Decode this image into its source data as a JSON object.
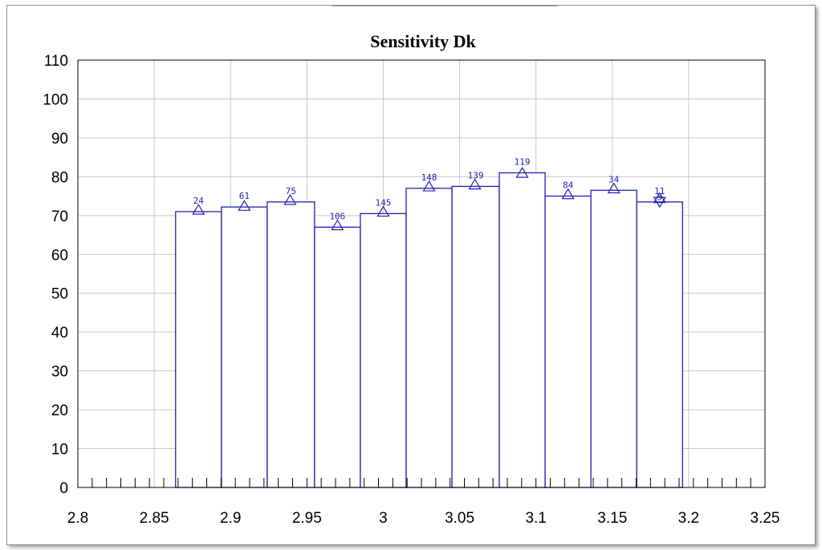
{
  "chart_data": {
    "type": "bar",
    "title": "Sensitivity Dk",
    "xlabel": "",
    "ylabel": "",
    "xlim": [
      2.8,
      3.25
    ],
    "ylim": [
      0,
      110
    ],
    "x_ticks": [
      "2.8",
      "2.85",
      "2.9",
      "2.95",
      "3",
      "3.05",
      "3.1",
      "3.15",
      "3.2",
      "3.25"
    ],
    "y_ticks": [
      "0",
      "10",
      "20",
      "30",
      "40",
      "50",
      "60",
      "70",
      "80",
      "90",
      "100",
      "110"
    ],
    "grid": true,
    "bin_width": 0.03,
    "bars": [
      {
        "x_start": 2.864,
        "x_end": 2.894,
        "value": 71.0,
        "label": "24"
      },
      {
        "x_start": 2.894,
        "x_end": 2.924,
        "value": 72.2,
        "label": "61"
      },
      {
        "x_start": 2.924,
        "x_end": 2.955,
        "value": 73.5,
        "label": "75"
      },
      {
        "x_start": 2.955,
        "x_end": 2.985,
        "value": 67.0,
        "label": "106"
      },
      {
        "x_start": 2.985,
        "x_end": 3.015,
        "value": 70.5,
        "label": "145"
      },
      {
        "x_start": 3.015,
        "x_end": 3.045,
        "value": 77.0,
        "label": "148"
      },
      {
        "x_start": 3.045,
        "x_end": 3.076,
        "value": 77.5,
        "label": "139"
      },
      {
        "x_start": 3.076,
        "x_end": 3.106,
        "value": 81.0,
        "label": "119"
      },
      {
        "x_start": 3.106,
        "x_end": 3.136,
        "value": 75.0,
        "label": "84"
      },
      {
        "x_start": 3.136,
        "x_end": 3.166,
        "value": 76.5,
        "label": "34"
      },
      {
        "x_start": 3.166,
        "x_end": 3.196,
        "value": 73.5,
        "label": "11"
      }
    ],
    "markers": [
      {
        "x": 2.879,
        "y": 71.5,
        "shape": "triangle-up"
      },
      {
        "x": 2.909,
        "y": 72.5,
        "shape": "triangle-up"
      },
      {
        "x": 2.939,
        "y": 74.0,
        "shape": "triangle-up"
      },
      {
        "x": 2.97,
        "y": 67.5,
        "shape": "triangle-up"
      },
      {
        "x": 3.0,
        "y": 71.0,
        "shape": "triangle-up"
      },
      {
        "x": 3.03,
        "y": 77.5,
        "shape": "triangle-up"
      },
      {
        "x": 3.06,
        "y": 78.0,
        "shape": "triangle-up"
      },
      {
        "x": 3.091,
        "y": 81.0,
        "shape": "triangle-up"
      },
      {
        "x": 3.121,
        "y": 75.5,
        "shape": "triangle-up"
      },
      {
        "x": 3.151,
        "y": 77.0,
        "shape": "triangle-up"
      },
      {
        "x": 3.181,
        "y": 74.5,
        "shape": "triangle-up"
      },
      {
        "x": 3.181,
        "y": 73.5,
        "shape": "triangle-down"
      }
    ],
    "extra_labels": [
      {
        "x": 3.181,
        "y": 74.0,
        "text": "5"
      }
    ],
    "colors": {
      "bar_edge": "#2020b0",
      "marker": "#2020b0",
      "grid": "#c8c8c8",
      "axis": "#000000"
    }
  }
}
